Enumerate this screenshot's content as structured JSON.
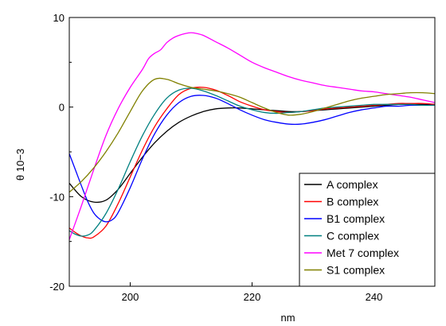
{
  "chart_data": {
    "type": "line",
    "title": "",
    "xlabel": "nm",
    "ylabel": "θ 10−3",
    "xlim": [
      190,
      250
    ],
    "ylim": [
      -20,
      10
    ],
    "xticks": [
      200,
      220,
      240
    ],
    "yticks": [
      -20,
      -10,
      0,
      10
    ],
    "grid": false,
    "legend_position": "bottom-right",
    "series": [
      {
        "name": "A complex",
        "color": "#000000",
        "x": [
          190,
          192,
          194,
          196,
          198,
          200,
          202,
          204,
          206,
          208,
          210,
          212,
          214,
          216,
          218,
          220,
          222,
          224,
          226,
          228,
          230,
          232,
          234,
          236,
          238,
          240,
          242,
          244,
          246,
          248,
          250
        ],
        "y": [
          -8.5,
          -10.0,
          -10.6,
          -10.4,
          -9.2,
          -7.4,
          -5.6,
          -4.0,
          -2.7,
          -1.7,
          -1.0,
          -0.5,
          -0.2,
          -0.1,
          -0.1,
          -0.2,
          -0.3,
          -0.4,
          -0.5,
          -0.5,
          -0.4,
          -0.3,
          -0.2,
          -0.1,
          0.0,
          0.1,
          0.2,
          0.3,
          0.3,
          0.3,
          0.3
        ]
      },
      {
        "name": "B complex",
        "color": "#ff0000",
        "x": [
          190,
          191,
          192,
          193,
          194,
          196,
          198,
          200,
          202,
          204,
          206,
          208,
          210,
          212,
          214,
          216,
          218,
          220,
          222,
          224,
          226,
          228,
          230,
          232,
          234,
          236,
          238,
          240,
          242,
          244,
          246,
          248,
          250
        ],
        "y": [
          -13.5,
          -14.0,
          -14.4,
          -14.6,
          -14.5,
          -13.3,
          -10.8,
          -7.8,
          -4.8,
          -2.2,
          -0.2,
          1.4,
          2.1,
          2.2,
          1.9,
          1.3,
          0.6,
          0.1,
          -0.3,
          -0.5,
          -0.6,
          -0.5,
          -0.4,
          -0.2,
          -0.1,
          0.0,
          0.1,
          0.2,
          0.3,
          0.4,
          0.4,
          0.4,
          0.3
        ]
      },
      {
        "name": "B1 complex",
        "color": "#0000ff",
        "x": [
          190,
          191,
          192,
          193,
          194,
          195,
          196,
          197,
          198,
          200,
          202,
          204,
          206,
          208,
          210,
          212,
          214,
          216,
          218,
          220,
          222,
          224,
          226,
          228,
          230,
          232,
          234,
          236,
          238,
          240,
          242,
          244,
          246,
          248,
          250
        ],
        "y": [
          -5.2,
          -7.0,
          -8.8,
          -10.5,
          -11.8,
          -12.5,
          -12.8,
          -12.6,
          -11.8,
          -9.0,
          -5.8,
          -3.0,
          -0.9,
          0.5,
          1.2,
          1.3,
          1.0,
          0.4,
          -0.3,
          -0.9,
          -1.4,
          -1.7,
          -1.9,
          -1.9,
          -1.7,
          -1.4,
          -1.0,
          -0.6,
          -0.3,
          -0.1,
          0.1,
          0.1,
          0.2,
          0.2,
          0.2
        ]
      },
      {
        "name": "C complex",
        "color": "#008080",
        "x": [
          190,
          191,
          192,
          193,
          194,
          196,
          198,
          200,
          202,
          204,
          206,
          208,
          210,
          212,
          214,
          216,
          218,
          220,
          222,
          224,
          226,
          228,
          230,
          232,
          234,
          236,
          238,
          240,
          242,
          244,
          246,
          248,
          250
        ],
        "y": [
          -13.8,
          -14.2,
          -14.4,
          -14.3,
          -13.8,
          -11.9,
          -9.2,
          -6.1,
          -3.2,
          -0.8,
          1.0,
          1.9,
          2.1,
          1.8,
          1.3,
          0.7,
          0.1,
          -0.3,
          -0.6,
          -0.7,
          -0.6,
          -0.5,
          -0.3,
          -0.1,
          0.0,
          0.1,
          0.2,
          0.3,
          0.3,
          0.3,
          0.3,
          0.2,
          0.2
        ]
      },
      {
        "name": "Met 7 complex",
        "color": "#ff00ff",
        "x": [
          190,
          192,
          194,
          196,
          198,
          200,
          202,
          203,
          204,
          205,
          206,
          207,
          208,
          209,
          210,
          211,
          212,
          214,
          216,
          218,
          220,
          222,
          224,
          226,
          228,
          230,
          232,
          234,
          236,
          238,
          240,
          242,
          244,
          246,
          248,
          250
        ],
        "y": [
          -14.8,
          -11.0,
          -7.0,
          -3.2,
          -0.2,
          2.2,
          4.2,
          5.4,
          6.0,
          6.4,
          7.2,
          7.7,
          8.0,
          8.2,
          8.3,
          8.2,
          8.0,
          7.3,
          6.6,
          5.8,
          5.0,
          4.4,
          3.9,
          3.4,
          3.0,
          2.7,
          2.4,
          2.2,
          2.0,
          1.8,
          1.7,
          1.5,
          1.3,
          1.1,
          0.8,
          0.5
        ]
      },
      {
        "name": "S1 complex",
        "color": "#808000",
        "x": [
          190,
          192,
          194,
          196,
          198,
          200,
          202,
          204,
          206,
          208,
          210,
          212,
          214,
          216,
          218,
          220,
          222,
          224,
          226,
          228,
          230,
          232,
          234,
          236,
          238,
          240,
          242,
          244,
          246,
          248,
          250
        ],
        "y": [
          -9.5,
          -8.3,
          -6.8,
          -5.0,
          -2.9,
          -0.5,
          1.8,
          3.1,
          3.1,
          2.6,
          2.2,
          2.0,
          1.8,
          1.5,
          1.1,
          0.5,
          -0.1,
          -0.6,
          -0.9,
          -0.8,
          -0.5,
          -0.1,
          0.3,
          0.7,
          1.0,
          1.2,
          1.4,
          1.5,
          1.6,
          1.6,
          1.5
        ]
      }
    ]
  }
}
